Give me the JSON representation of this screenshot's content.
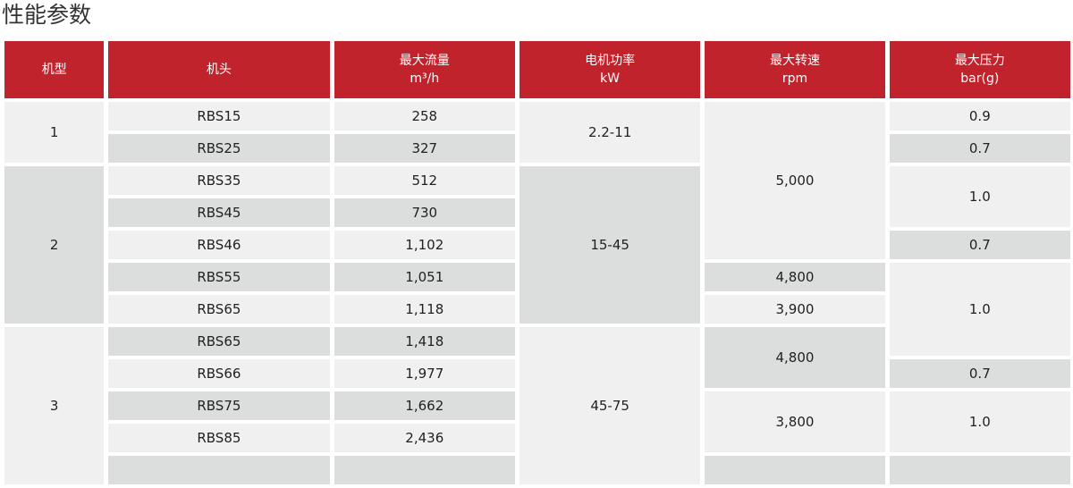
{
  "title": "性能参数",
  "headers": [
    {
      "label": "机型",
      "unit": ""
    },
    {
      "label": "机头",
      "unit": ""
    },
    {
      "label": "最大流量",
      "unit": "m³/h"
    },
    {
      "label": "电机功率",
      "unit": "kW"
    },
    {
      "label": "最大转速",
      "unit": "rpm"
    },
    {
      "label": "最大压力",
      "unit": "bar(g)"
    }
  ],
  "models": [
    "1",
    "2",
    "3"
  ],
  "heads": [
    "RBS15",
    "RBS25",
    "RBS35",
    "RBS45",
    "RBS46",
    "RBS55",
    "RBS65",
    "RBS65",
    "RBS66",
    "RBS75",
    "RBS85"
  ],
  "flows": [
    "258",
    "327",
    "512",
    "730",
    "1,102",
    "1,051",
    "1,118",
    "1,418",
    "1,977",
    "1,662",
    "2,436"
  ],
  "power": [
    "2.2-11",
    "15-45",
    "45-75"
  ],
  "speed": [
    "5,000",
    "4,800",
    "3,900",
    "4,800",
    "3,800"
  ],
  "pressure": [
    "0.9",
    "0.7",
    "1.0",
    "0.7",
    "1.0",
    "0.7",
    "1.0"
  ]
}
